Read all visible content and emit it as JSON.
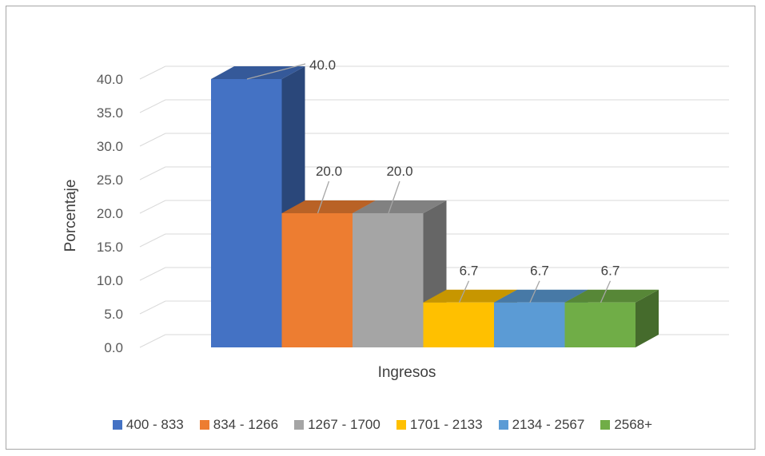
{
  "chart_data": {
    "type": "bar",
    "title": "",
    "xlabel": "Ingresos",
    "ylabel": "Porcentaje",
    "ylim": [
      0,
      40
    ],
    "yticks": [
      "0.0",
      "5.0",
      "10.0",
      "15.0",
      "20.0",
      "25.0",
      "30.0",
      "35.0",
      "40.0"
    ],
    "grid": true,
    "legend_position": "bottom",
    "categories": [
      "400 - 833",
      "834 - 1266",
      "1267 - 1700",
      "1701 - 2133",
      "2134 - 2567",
      "2568+"
    ],
    "values": [
      40.0,
      20.0,
      20.0,
      6.7,
      6.7,
      6.7
    ],
    "value_labels": [
      "40.0",
      "20.0",
      "20.0",
      "6.7",
      "6.7",
      "6.7"
    ],
    "colors": [
      "#4472c4",
      "#ed7d31",
      "#a5a5a5",
      "#ffc000",
      "#5b9bd5",
      "#70ad47"
    ]
  }
}
